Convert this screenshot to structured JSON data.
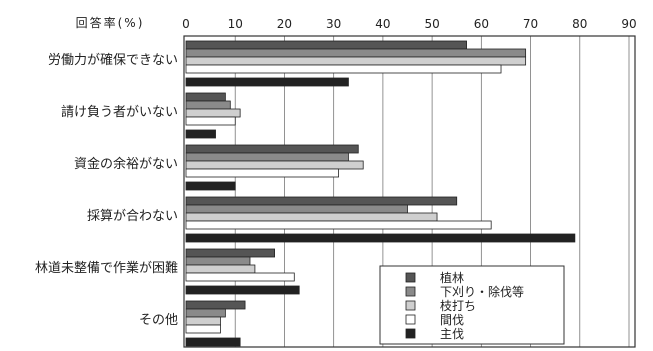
{
  "chart_data": {
    "type": "bar",
    "orientation": "horizontal",
    "top_text": "",
    "axis_unit": "回答率(%)",
    "xlim": [
      0,
      90
    ],
    "ticks": [
      0,
      10,
      20,
      30,
      40,
      50,
      60,
      70,
      80,
      90
    ],
    "grid": true,
    "legend_position": "bottom-right",
    "categories": [
      "労働力が確保できない",
      "請け負う者がいない",
      "資金の余裕がない",
      "採算が合わない",
      "林道未整備で作業が困難",
      "その他"
    ],
    "series": [
      {
        "name": "植林",
        "color": "#555555",
        "values": [
          57,
          8,
          35,
          55,
          18,
          12
        ]
      },
      {
        "name": "下刈り・除伐等",
        "color": "#8a8a8a",
        "values": [
          69,
          9,
          33,
          45,
          13,
          8
        ]
      },
      {
        "name": "枝打ち",
        "color": "#cfcfcf",
        "values": [
          69,
          11,
          36,
          51,
          14,
          7
        ]
      },
      {
        "name": "間伐",
        "color": "#ffffff",
        "values": [
          64,
          10,
          31,
          62,
          22,
          7
        ]
      },
      {
        "name": "主伐",
        "color": "#222222",
        "values": [
          33,
          6,
          10,
          79,
          23,
          11
        ]
      }
    ]
  }
}
